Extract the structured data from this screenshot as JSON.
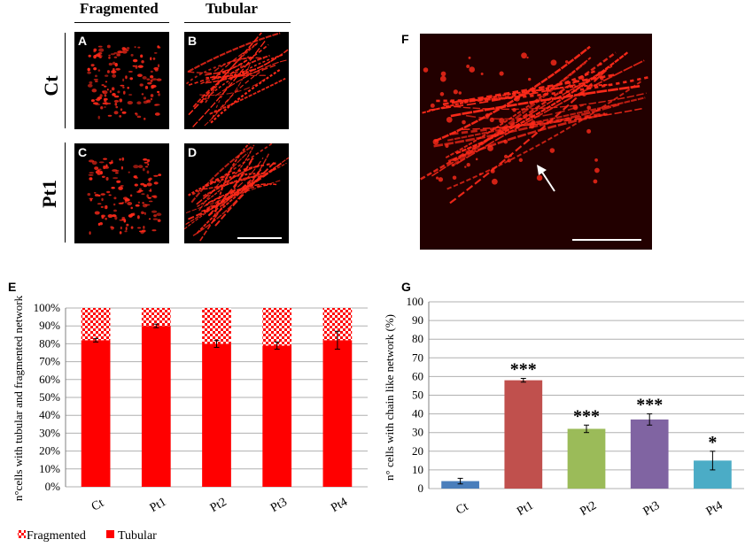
{
  "figure": {
    "col_headers": [
      "Fragmented",
      "Tubular"
    ],
    "row_labels": [
      "Ct",
      "Pt1"
    ],
    "micrographs": [
      {
        "letter": "A",
        "pattern": "fragmented"
      },
      {
        "letter": "B",
        "pattern": "tubular"
      },
      {
        "letter": "C",
        "pattern": "fragmented"
      },
      {
        "letter": "D",
        "pattern": "tubular"
      },
      {
        "letter": "F",
        "pattern": "chain"
      }
    ],
    "stain_color": "#ff2a1a"
  },
  "chart_data": [
    {
      "panel": "E",
      "type": "bar",
      "stacked": true,
      "categories": [
        "Ct",
        "Pt1",
        "Pt2",
        "Pt3",
        "Pt4"
      ],
      "series": [
        {
          "name": "Tubular",
          "color": "#ff0000",
          "values": [
            82,
            90,
            80,
            79,
            82
          ],
          "errors": [
            1,
            1,
            2,
            2,
            5
          ]
        },
        {
          "name": "Fragmented",
          "color": "#ff0000",
          "pattern": "checker",
          "values": [
            18,
            10,
            20,
            21,
            18
          ]
        }
      ],
      "ylabel": "n°cells with tubular and fragmented network",
      "ylim": [
        0,
        100
      ],
      "yticks": [
        "0%",
        "10%",
        "20%",
        "30%",
        "40%",
        "50%",
        "60%",
        "70%",
        "80%",
        "90%",
        "100%"
      ],
      "grid": true,
      "legend": "bottom-left"
    },
    {
      "panel": "G",
      "type": "bar",
      "categories": [
        "Ct",
        "Pt1",
        "Pt2",
        "Pt3",
        "Pt4"
      ],
      "values": [
        4,
        58,
        32,
        37,
        15
      ],
      "errors": [
        1.5,
        1,
        2,
        3,
        5
      ],
      "colors": [
        "#4a7ebb",
        "#c0504d",
        "#9bbb59",
        "#8064a2",
        "#4bacc6"
      ],
      "significance": [
        "",
        "***",
        "***",
        "***",
        "*"
      ],
      "ylabel": "n° cells with chain like network (%)",
      "ylim": [
        0,
        100
      ],
      "yticks": [
        "0",
        "10",
        "20",
        "30",
        "40",
        "50",
        "60",
        "70",
        "80",
        "90",
        "100"
      ],
      "grid": true
    }
  ]
}
